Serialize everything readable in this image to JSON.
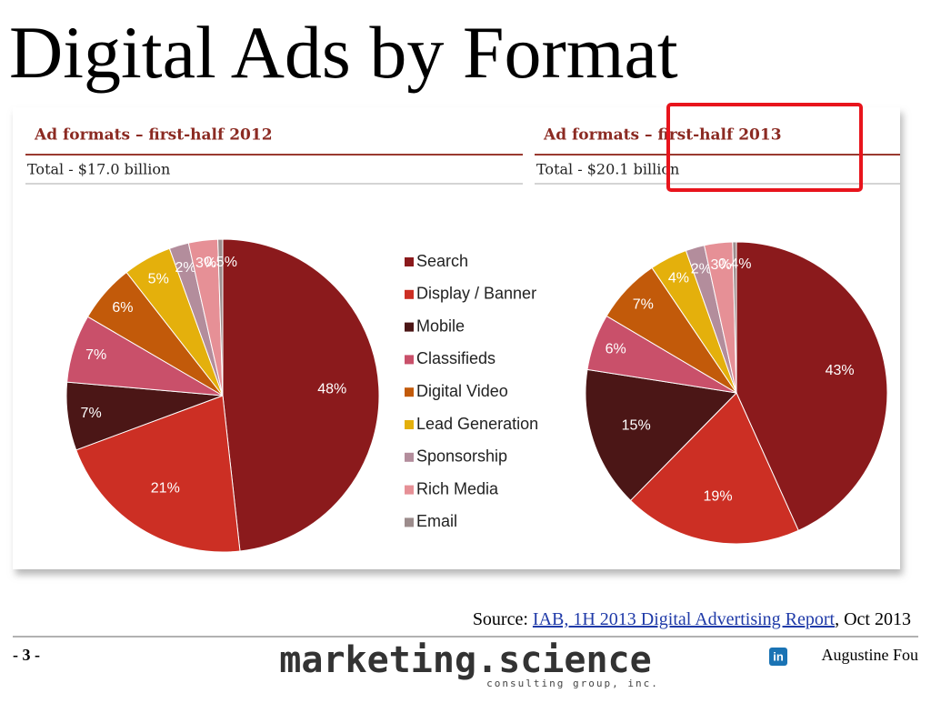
{
  "slide": {
    "title": "Digital Ads by Format",
    "page_number": "- 3 -",
    "logo": "marketing.science",
    "logo_tagline": "consulting group, inc.",
    "author": "Augustine Fou",
    "source_prefix": "Source:",
    "source_link": "IAB, 1H 2013 Digital Advertising Report",
    "source_suffix": ", Oct 2013"
  },
  "chart_data": [
    {
      "type": "pie",
      "title": "Ad formats – first-half 2012",
      "subtitle": "Total - $17.0 billion",
      "categories": [
        "Search",
        "Display / Banner",
        "Mobile",
        "Classifieds",
        "Digital Video",
        "Lead Generation",
        "Sponsorship",
        "Rich Media",
        "Email"
      ],
      "values": [
        48,
        21,
        7,
        7,
        6,
        5,
        2,
        3,
        0.5
      ],
      "value_labels": [
        "48%",
        "21%",
        "7%",
        "7%",
        "6%",
        "5%",
        "2%",
        "3%",
        "0.5%"
      ],
      "colors": [
        "#8b1a1c",
        "#cc2f24",
        "#4b1616",
        "#c9506a",
        "#c25a0a",
        "#e4b00c",
        "#b38d9c",
        "#e69096",
        "#9c8c8c"
      ],
      "legend": "right"
    },
    {
      "type": "pie",
      "title": "Ad formats – first-half 2013",
      "subtitle": "Total - $20.1 billion",
      "categories": [
        "Search",
        "Display / Banner",
        "Mobile",
        "Classifieds",
        "Digital Video",
        "Lead Generation",
        "Sponsorship",
        "Rich Media",
        "Email"
      ],
      "values": [
        43,
        19,
        15,
        6,
        7,
        4,
        2,
        3,
        0.4
      ],
      "value_labels": [
        "43%",
        "19%",
        "15%",
        "6%",
        "7%",
        "4%",
        "2%",
        "3%",
        "0.4%"
      ],
      "colors": [
        "#8b1a1c",
        "#cc2f24",
        "#4b1616",
        "#c9506a",
        "#c25a0a",
        "#e4b00c",
        "#b38d9c",
        "#e69096",
        "#9c8c8c"
      ]
    }
  ]
}
